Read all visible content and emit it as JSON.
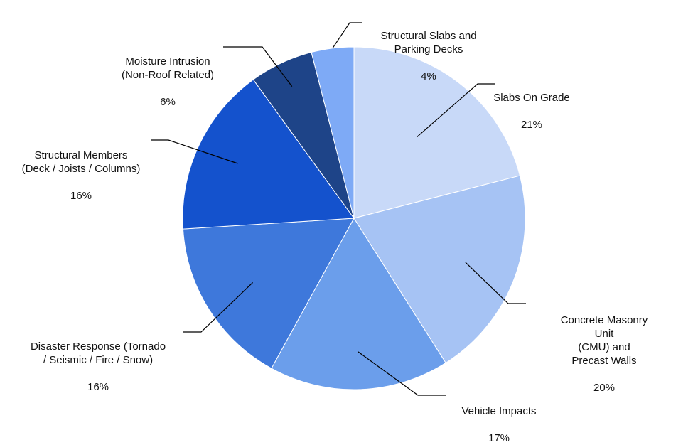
{
  "chart_data": {
    "type": "pie",
    "start_angle_deg": 0,
    "direction": "clockwise",
    "title": "",
    "slices": [
      {
        "label": "Slabs On Grade",
        "percent_label": "21%",
        "value": 21,
        "color": "#c8d9f8"
      },
      {
        "label": "Concrete Masonry Unit\n(CMU) and Precast Walls",
        "percent_label": "20%",
        "value": 20,
        "color": "#a6c3f4"
      },
      {
        "label": "Vehicle Impacts",
        "percent_label": "17%",
        "value": 17,
        "color": "#6b9eeb"
      },
      {
        "label": "Disaster Response (Tornado\n/ Seismic / Fire / Snow)",
        "percent_label": "16%",
        "value": 16,
        "color": "#3e78db"
      },
      {
        "label": "Structural Members\n(Deck / Joists / Columns)",
        "percent_label": "16%",
        "value": 16,
        "color": "#1452cd"
      },
      {
        "label": "Moisture Intrusion\n(Non-Roof Related)",
        "percent_label": "6%",
        "value": 6,
        "color": "#1e4488"
      },
      {
        "label": "Structural Slabs and\nParking Decks",
        "percent_label": "4%",
        "value": 4,
        "color": "#7eaaf6"
      }
    ]
  }
}
